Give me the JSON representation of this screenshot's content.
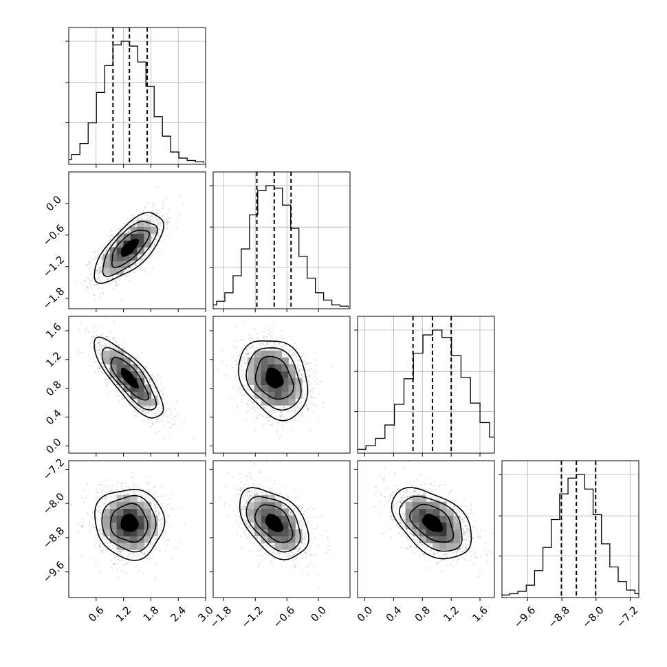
{
  "chart_data": {
    "type": "corner",
    "n_params": 4,
    "parameters": [
      {
        "index": 0,
        "range": [
          0.0,
          3.0
        ],
        "ticks": [
          "0.6",
          "1.2",
          "1.8",
          "2.4",
          "3.0"
        ],
        "tick_values": [
          0.6,
          1.2,
          1.8,
          2.4,
          3.0
        ],
        "quantiles": [
          0.97,
          1.33,
          1.72
        ],
        "median": 1.33,
        "std": 0.37
      },
      {
        "index": 1,
        "range": [
          -2.0,
          0.6
        ],
        "ticks": [
          "−1.8",
          "−1.2",
          "−0.6",
          "0.0"
        ],
        "tick_values": [
          -1.8,
          -1.2,
          -0.6,
          0.0
        ],
        "quantiles": [
          -1.17,
          -0.84,
          -0.52
        ],
        "median": -0.84,
        "std": 0.32
      },
      {
        "index": 2,
        "range": [
          -0.1,
          1.8
        ],
        "ticks": [
          "0.0",
          "0.4",
          "0.8",
          "1.2",
          "1.6"
        ],
        "tick_values": [
          0.0,
          0.4,
          0.8,
          1.2,
          1.6
        ],
        "quantiles": [
          0.67,
          0.94,
          1.2
        ],
        "median": 0.94,
        "std": 0.27
      },
      {
        "index": 3,
        "range": [
          -10.2,
          -7.0
        ],
        "ticks": [
          "−9.6",
          "−8.8",
          "−8.0",
          "−7.2"
        ],
        "tick_values": [
          -9.6,
          -8.8,
          -8.0,
          -7.2
        ],
        "quantiles": [
          -8.81,
          -8.46,
          -8.01
        ],
        "median": -8.46,
        "std": 0.4
      }
    ],
    "correlations": [
      {
        "pair": [
          1,
          0
        ],
        "rho": 0.7
      },
      {
        "pair": [
          2,
          0
        ],
        "rho": -0.8
      },
      {
        "pair": [
          2,
          1
        ],
        "rho": -0.25
      },
      {
        "pair": [
          3,
          0
        ],
        "rho": -0.05
      },
      {
        "pair": [
          3,
          1
        ],
        "rho": -0.45
      },
      {
        "pair": [
          3,
          2
        ],
        "rho": -0.45
      }
    ],
    "diagonal_histograms": [
      [
        1,
        3,
        7,
        16,
        33,
        58,
        80,
        97,
        100,
        96,
        83,
        63,
        38,
        22,
        9,
        4,
        2,
        1
      ],
      [
        1,
        2,
        5,
        12,
        26,
        48,
        76,
        96,
        100,
        98,
        84,
        65,
        42,
        24,
        12,
        6,
        2,
        1
      ],
      [
        1,
        2,
        5,
        11,
        22,
        39,
        60,
        81,
        96,
        100,
        94,
        79,
        61,
        40,
        24,
        12,
        5,
        2
      ],
      [
        1,
        2,
        4,
        9,
        21,
        40,
        63,
        84,
        97,
        100,
        88,
        67,
        43,
        24,
        12,
        5,
        2,
        1
      ]
    ],
    "quantile_lines": "dashed",
    "contour_levels": 3,
    "grid": true,
    "legend": "none",
    "title": ""
  }
}
